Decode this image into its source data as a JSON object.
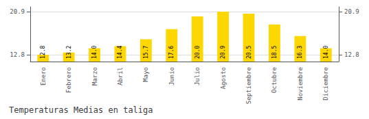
{
  "chart_data": {
    "type": "bar",
    "title": "Temperaturas Medias en taliga",
    "categories": [
      "Enero",
      "Febrero",
      "Marzo",
      "Abril",
      "Mayo",
      "Junio",
      "Julio",
      "Agosto",
      "Septiembre",
      "Octubre",
      "Noviembre",
      "Diciembre"
    ],
    "values": [
      12.8,
      13.2,
      14.0,
      14.4,
      15.7,
      17.6,
      20.0,
      20.9,
      20.5,
      18.5,
      16.3,
      14.0
    ],
    "value_labels": [
      "12.8",
      "13.2",
      "14.0",
      "14.4",
      "15.7",
      "17.6",
      "20.0",
      "20.9",
      "20.5",
      "18.5",
      "16.3",
      "14.0"
    ],
    "data_labels": true,
    "color": "#FFD700",
    "ylim": [
      11.5,
      21.8
    ],
    "yticks": [
      12.8,
      20.9
    ],
    "y2lim": [
      11.5,
      21.8
    ],
    "y2ticks": [
      12.8,
      20.9
    ],
    "grid": true
  }
}
